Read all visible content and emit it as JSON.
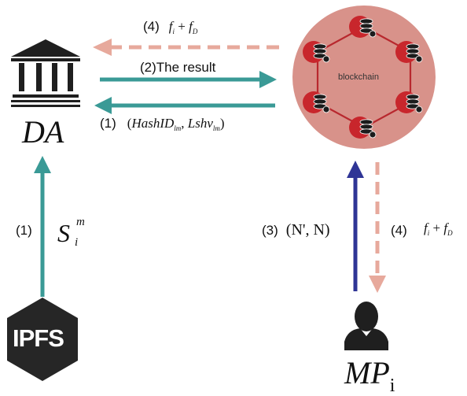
{
  "colors": {
    "teal": "#3a9a96",
    "salmon_dashed": "#e7a99c",
    "navy": "#2f3596",
    "blockchain_fill": "#d8928a",
    "blockchain_node": "#c8262c",
    "dark": "#1f1f1f"
  },
  "icons": {
    "da": "bank-building-icon",
    "ipfs": "ipfs-hexagon-logo",
    "user": "user-silhouette-icon",
    "db": "database-icon"
  },
  "entities": {
    "da_label": "DA",
    "blockchain_label": "blockchain",
    "ipfs_label": "IPFS",
    "mp_label_main": "MP",
    "mp_label_sub": "i"
  },
  "arrows": {
    "top_dashed": {
      "step": "(4)",
      "f": "f",
      "f_sub": "i",
      "plus": " + ",
      "fd": "f",
      "fd_sub": "D"
    },
    "result": {
      "label": "(2)The result"
    },
    "hash": {
      "step": "(1)",
      "open": "(",
      "hash": "HashID",
      "hash_sub": "lm",
      "comma": ", ",
      "lshv": "Lshv",
      "lshv_sub": "lm",
      "close": ")"
    },
    "ipfs_up": {
      "step": "(1)",
      "s": "S",
      "s_sub": "i",
      "s_sup": "m"
    },
    "mp_up": {
      "step": "(3)",
      "value": "(N', N)"
    },
    "mp_down_dashed": {
      "step": "(4)",
      "f": "f",
      "f_sub": "i",
      "plus": " + ",
      "fd": "f",
      "fd_sub": "D"
    }
  }
}
